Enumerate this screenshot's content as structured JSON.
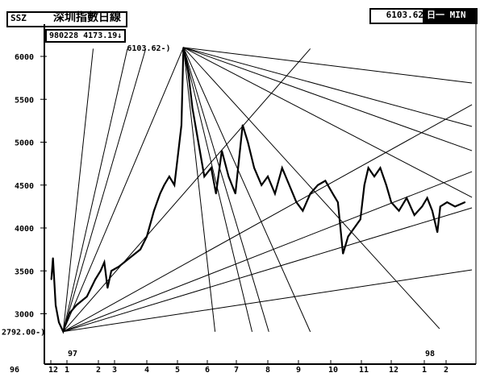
{
  "header": {
    "code": "SSZ",
    "title": "深圳指數日線",
    "date_value": "980228  4173.19↓",
    "peak_readout": "6103.62",
    "mode_label": "日一 MIN"
  },
  "chart_data": {
    "type": "line",
    "title": "深圳指數日線",
    "ylim": [
      2700,
      6300
    ],
    "yticks": [
      {
        "v": 6000,
        "label": "6000"
      },
      {
        "v": 5500,
        "label": "5500"
      },
      {
        "v": 5000,
        "label": "5000"
      },
      {
        "v": 4500,
        "label": "4500"
      },
      {
        "v": 4000,
        "label": "4000"
      },
      {
        "v": 3500,
        "label": "3500"
      },
      {
        "v": 3000,
        "label": "3000"
      }
    ],
    "xticks": [
      {
        "d": "1996-12",
        "label": "12"
      },
      {
        "d": "1997-01",
        "label": "1"
      },
      {
        "d": "1997-02",
        "label": "2"
      },
      {
        "d": "1997-03",
        "label": "3"
      },
      {
        "d": "1997-04",
        "label": "4"
      },
      {
        "d": "1997-05",
        "label": "5"
      },
      {
        "d": "1997-06",
        "label": "6"
      },
      {
        "d": "1997-07",
        "label": "7"
      },
      {
        "d": "1997-08",
        "label": "8"
      },
      {
        "d": "1997-09",
        "label": "9"
      },
      {
        "d": "1997-10",
        "label": "10"
      },
      {
        "d": "1997-11",
        "label": "11"
      },
      {
        "d": "1997-12",
        "label": "12"
      },
      {
        "d": "1998-01",
        "label": "1"
      },
      {
        "d": "1998-02",
        "label": "2"
      }
    ],
    "year_labels": [
      "96",
      "97",
      "98"
    ],
    "annotations": {
      "high": {
        "date": "1997-05-07",
        "value": 6103.62,
        "label": "6103.62-)"
      },
      "low": {
        "date": "1996-12-24",
        "value": 2792.0,
        "label": "2792.00-)"
      }
    },
    "series": [
      {
        "values": [
          [
            "1996-12-02",
            3400
          ],
          [
            "1996-12-05",
            3650
          ],
          [
            "1996-12-10",
            3100
          ],
          [
            "1996-12-16",
            2900
          ],
          [
            "1996-12-24",
            2792
          ],
          [
            "1997-01-03",
            3000
          ],
          [
            "1997-01-10",
            3100
          ],
          [
            "1997-01-20",
            3200
          ],
          [
            "1997-01-28",
            3400
          ],
          [
            "1997-02-05",
            3500
          ],
          [
            "1997-02-12",
            3600
          ],
          [
            "1997-02-18",
            3300
          ],
          [
            "1997-02-25",
            3500
          ],
          [
            "1997-03-05",
            3550
          ],
          [
            "1997-03-15",
            3650
          ],
          [
            "1997-03-25",
            3750
          ],
          [
            "1997-04-01",
            3900
          ],
          [
            "1997-04-08",
            4200
          ],
          [
            "1997-04-14",
            4400
          ],
          [
            "1997-04-18",
            4500
          ],
          [
            "1997-04-23",
            4600
          ],
          [
            "1997-04-28",
            4500
          ],
          [
            "1997-05-02",
            4900
          ],
          [
            "1997-05-05",
            5200
          ],
          [
            "1997-05-07",
            6103.62
          ],
          [
            "1997-05-12",
            5800
          ],
          [
            "1997-05-16",
            5400
          ],
          [
            "1997-05-22",
            5000
          ],
          [
            "1997-05-28",
            4600
          ],
          [
            "1997-06-05",
            4700
          ],
          [
            "1997-06-10",
            4400
          ],
          [
            "1997-06-16",
            4900
          ],
          [
            "1997-06-23",
            4600
          ],
          [
            "1997-06-30",
            4400
          ],
          [
            "1997-07-07",
            5200
          ],
          [
            "1997-07-12",
            5000
          ],
          [
            "1997-07-18",
            4700
          ],
          [
            "1997-07-25",
            4500
          ],
          [
            "1997-08-01",
            4600
          ],
          [
            "1997-08-08",
            4400
          ],
          [
            "1997-08-15",
            4700
          ],
          [
            "1997-08-22",
            4500
          ],
          [
            "1997-08-29",
            4300
          ],
          [
            "1997-09-05",
            4200
          ],
          [
            "1997-09-12",
            4400
          ],
          [
            "1997-09-19",
            4500
          ],
          [
            "1997-09-26",
            4550
          ],
          [
            "1997-10-03",
            4400
          ],
          [
            "1997-10-08",
            4300
          ],
          [
            "1997-10-13",
            3700
          ],
          [
            "1997-10-18",
            3900
          ],
          [
            "1997-10-24",
            4000
          ],
          [
            "1997-10-30",
            4100
          ],
          [
            "1997-11-04",
            4500
          ],
          [
            "1997-11-08",
            4700
          ],
          [
            "1997-11-14",
            4600
          ],
          [
            "1997-11-20",
            4700
          ],
          [
            "1997-11-26",
            4500
          ],
          [
            "1997-12-01",
            4300
          ],
          [
            "1997-12-08",
            4200
          ],
          [
            "1997-12-15",
            4350
          ],
          [
            "1997-12-22",
            4150
          ],
          [
            "1997-12-29",
            4250
          ],
          [
            "1998-01-05",
            4350
          ],
          [
            "1998-01-12",
            4200
          ],
          [
            "1998-01-19",
            3950
          ],
          [
            "1998-01-23",
            4250
          ],
          [
            "1998-02-02",
            4300
          ],
          [
            "1998-02-10",
            4250
          ],
          [
            "1998-02-20",
            4300
          ]
        ]
      }
    ],
    "fan_lines": [
      {
        "from": [
          "1997-05-07",
          6103.62
        ],
        "to": [
          "1998-02-27",
          5690
        ]
      },
      {
        "from": [
          "1997-05-07",
          6103.62
        ],
        "to": [
          "1998-02-27",
          5183
        ]
      },
      {
        "from": [
          "1997-05-07",
          6103.62
        ],
        "to": [
          "1998-02-27",
          4901
        ]
      },
      {
        "from": [
          "1997-05-07",
          6103.62
        ],
        "to": [
          "1998-02-27",
          4357
        ]
      },
      {
        "from": [
          "1997-05-07",
          6103.62
        ],
        "to": [
          "1998-01-22",
          2826
        ]
      },
      {
        "from": [
          "1997-05-07",
          6103.62
        ],
        "to": [
          "1997-09-12",
          2790
        ]
      },
      {
        "from": [
          "1997-05-07",
          6103.62
        ],
        "to": [
          "1997-08-02",
          2790
        ]
      },
      {
        "from": [
          "1997-05-07",
          6103.62
        ],
        "to": [
          "1997-07-16",
          2790
        ]
      },
      {
        "from": [
          "1997-05-07",
          6103.62
        ],
        "to": [
          "1997-06-09",
          2790
        ]
      },
      {
        "from": [
          "1996-12-24",
          2792
        ],
        "to": [
          "1997-01-26",
          6090
        ]
      },
      {
        "from": [
          "1996-12-24",
          2792
        ],
        "to": [
          "1997-03-13",
          6090
        ]
      },
      {
        "from": [
          "1996-12-24",
          2792
        ],
        "to": [
          "1997-03-30",
          6090
        ]
      },
      {
        "from": [
          "1996-12-24",
          2792
        ],
        "to": [
          "1997-05-07",
          6103.62
        ]
      },
      {
        "from": [
          "1996-12-24",
          2792
        ],
        "to": [
          "1997-09-12",
          6090
        ]
      },
      {
        "from": [
          "1996-12-24",
          2792
        ],
        "to": [
          "1998-02-27",
          5437
        ]
      },
      {
        "from": [
          "1996-12-24",
          2792
        ],
        "to": [
          "1998-02-27",
          4657
        ]
      },
      {
        "from": [
          "1996-12-24",
          2792
        ],
        "to": [
          "1998-02-27",
          4235
        ]
      },
      {
        "from": [
          "1996-12-24",
          2792
        ],
        "to": [
          "1998-02-27",
          3512
        ]
      }
    ]
  }
}
